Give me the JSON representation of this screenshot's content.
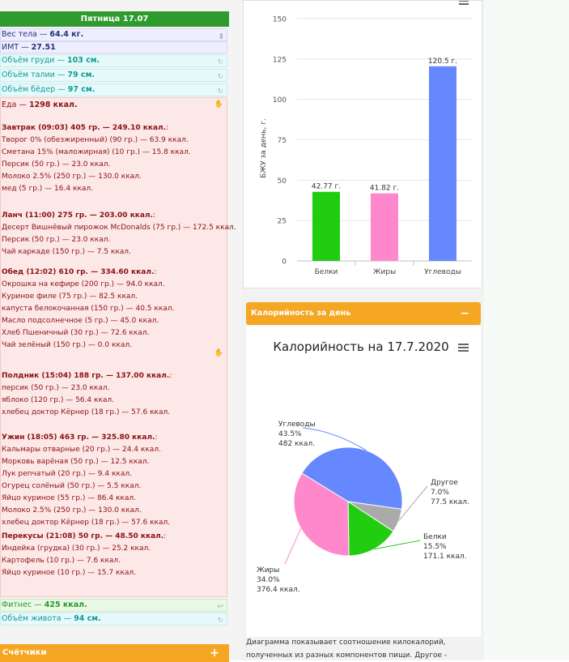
{
  "day": {
    "header": "Пятница 17.07"
  },
  "metrics": {
    "weight_label": "Вес тела — ",
    "weight_value": "64.4 кг.",
    "bmi_label": "ИМТ — ",
    "bmi_value": "27.51",
    "chest_label": "Объём груди — ",
    "chest_value": "103 см.",
    "waist_label": "Объём талии — ",
    "waist_value": "79 см.",
    "hips_label": "Объём бёдер — ",
    "hips_value": "97 см.",
    "food_label": "Еда — ",
    "food_value": "1298 ккал.",
    "fitness_label": "Фитнес — ",
    "fitness_value": "425 ккал.",
    "belly_label": "Объём живота — ",
    "belly_value": "94 см."
  },
  "meals": [
    {
      "title": "Завтрак (09:03) 405 гр. — 249.10 ккал.",
      "suffix": ":",
      "items": [
        "Творог 0% (обезжиренный) (90 гр.) — 63.9 ккал.",
        "Сметана 15% (маложирная) (10 гр.) — 15.8 ккал.",
        "Персик (50 гр.) — 23.0 ккал.",
        "Молоко 2.5% (250 гр.) — 130.0 ккал.",
        "мед (5 гр.) — 16.4 ккал."
      ]
    },
    {
      "title": "Ланч (11:00) 275 гр. — 203.00 ккал.",
      "suffix": ":",
      "items": [
        "Десерт Вишнёвый пирожок McDonalds (75 гр.) — 172.5 ккал.",
        "Персик (50 гр.) — 23.0 ккал.",
        "Чай каркаде (150 гр.) — 7.5 ккал."
      ]
    },
    {
      "title": "Обед (12:02) 610 гр. — 334.60 ккал.",
      "suffix": ":",
      "items": [
        "Окрошка на кефире (200 гр.) — 94.0 ккал.",
        "Куриное филе (75 гр.) — 82.5 ккал.",
        "капуста белокочанная (150 гр.) — 40.5 ккал.",
        "Масло подсолнечное (5 гр.) — 45.0 ккал.",
        "Хлеб Пшеничный (30 гр.) — 72.6 ккал.",
        "Чай зелёный (150 гр.) — 0.0 ккал."
      ]
    },
    {
      "title": "Полдник (15:04) 188 гр. — 137.00 ккал.",
      "suffix": ":",
      "items": [
        "персик (50 гр.) — 23.0 ккал.",
        "яблоко (120 гр.) — 56.4 ккал.",
        "хлебец доктор Кёрнер (18 гр.) — 57.6 ккал."
      ]
    },
    {
      "title": "Ужин (18:05) 463 гр. — 325.80 ккал.",
      "suffix": ":",
      "items": [
        "Кальмары отварные (20 гр.) — 24.4 ккал.",
        "Морковь варёная (50 гр.) — 12.5 ккал.",
        "Лук репчатый (20 гр.) — 9.4 ккал.",
        "Огурец солёный (50 гр.) — 5.5 ккал.",
        "Яйцо куриное (55 гр.) — 86.4 ккал.",
        "Молоко 2.5% (250 гр.) — 130.0 ккал.",
        "хлебец доктор Кёрнер (18 гр.) — 57.6 ккал."
      ]
    },
    {
      "title": "Перекусы (21:08) 50 гр. — 48.50 ккал.",
      "suffix": ":",
      "items": [
        "Индейка (грудка) (30 гр.) — 25.2 ккал.",
        "Картофель (10 гр.) — 7.6 ккал.",
        "Яйцо куриное (10 гр.) — 15.7 ккал."
      ]
    }
  ],
  "counters": {
    "label": "Счётчики",
    "toggle": "+"
  },
  "calories_panel": {
    "header": "Калорийность за день",
    "toggle": "−"
  },
  "description": [
    "Диаграмма показывает соотношение килокалорий,",
    "полученных из разных компонентов пищи. Другое -"
  ],
  "colors": {
    "protein": "#22cc11",
    "fat": "#ff88cc",
    "carbs": "#6688ff",
    "other": "#aaaaaa",
    "header_green": "#2f9b2f",
    "header_orange": "#f5a623"
  },
  "icons": [
    "menu-icon",
    "sync-icon",
    "ruler-icon",
    "hand-icon",
    "plus-icon",
    "minus-icon"
  ],
  "chart_data": [
    {
      "type": "bar",
      "categories": [
        "Белки",
        "Жиры",
        "Углеводы"
      ],
      "values": [
        42.77,
        41.82,
        120.5
      ],
      "data_labels": [
        "42.77 г.",
        "41.82 г.",
        "120.5 г."
      ],
      "ylabel": "БЖУ за день, г.",
      "yticks": [
        "0",
        "25",
        "50",
        "75",
        "100",
        "125",
        "150"
      ],
      "ylim": [
        0,
        150
      ],
      "colors": [
        "#22cc11",
        "#ff88cc",
        "#6688ff"
      ],
      "grid": true
    },
    {
      "type": "pie",
      "title": "Калорийность на 17.7.2020",
      "slices": [
        {
          "name": "Углеводы",
          "percent": "43.5%",
          "kcal": "482 ккал.",
          "value": 43.5,
          "color": "#6688ff"
        },
        {
          "name": "Другое",
          "percent": "7.0%",
          "kcal": "77.5 ккал.",
          "value": 7.0,
          "color": "#aaaaaa"
        },
        {
          "name": "Белки",
          "percent": "15.5%",
          "kcal": "171.1 ккал.",
          "value": 15.5,
          "color": "#22cc11"
        },
        {
          "name": "Жиры",
          "percent": "34.0%",
          "kcal": "376.4 ккал.",
          "value": 34.0,
          "color": "#ff88cc"
        }
      ]
    }
  ]
}
